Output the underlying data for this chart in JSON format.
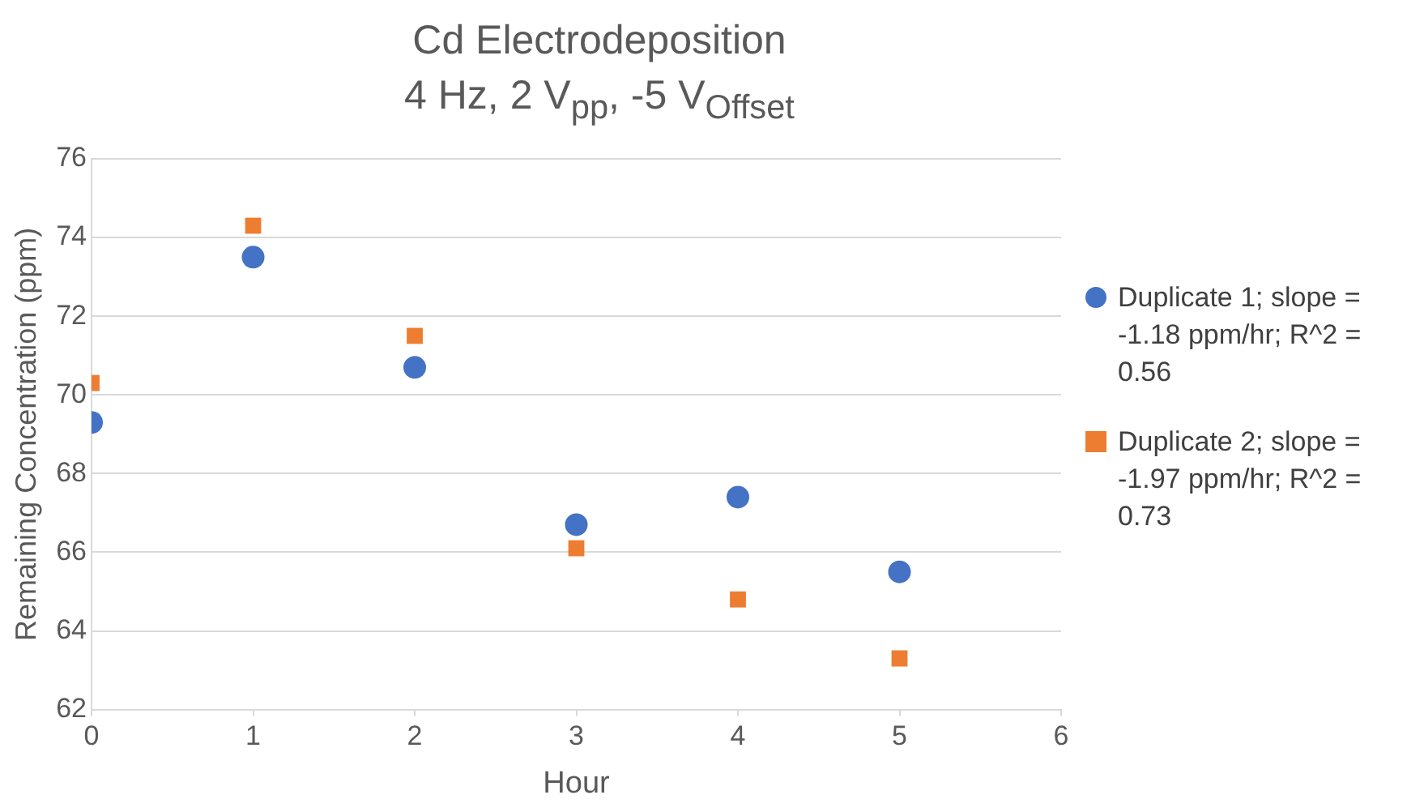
{
  "chart_data": {
    "type": "scatter",
    "title": "Cd Electrodeposition",
    "subtitle": "4 Hz, 2 V$_{pp}$, -5 V$_{Offset}$",
    "xlabel": "Hour",
    "ylabel": "Remaining Concentration (ppm)",
    "x": [
      0,
      1,
      2,
      3,
      4,
      5
    ],
    "series": [
      {
        "name": "Duplicate 1; slope = -1.18 ppm/hr; R^2 = 0.56",
        "color": "#4472c4",
        "marker": "circle",
        "values": [
          69.3,
          73.5,
          70.7,
          66.7,
          67.4,
          65.5
        ]
      },
      {
        "name": "Duplicate 2; slope = -1.97 ppm/hr; R^2 = 0.73",
        "color": "#ed7d31",
        "marker": "square",
        "values": [
          70.3,
          74.3,
          71.5,
          66.1,
          64.8,
          63.3
        ]
      }
    ],
    "xlim": [
      0,
      6
    ],
    "xticks": [
      0,
      1,
      2,
      3,
      4,
      5,
      6
    ],
    "ylim": [
      62,
      76
    ],
    "yticks": [
      62,
      64,
      66,
      68,
      70,
      72,
      74,
      76
    ],
    "grid": "y",
    "legend": "right"
  }
}
